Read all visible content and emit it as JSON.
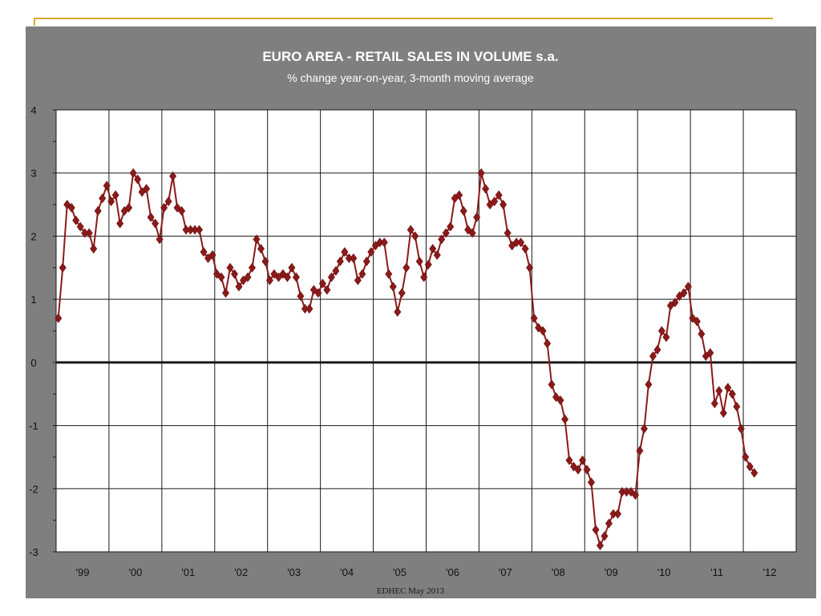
{
  "footer": "EDHEC May 2013",
  "colors": {
    "frame": "#7f7f7f",
    "plot_bg": "#ffffff",
    "series": "#8b1a1a",
    "accent_rule": "#d8a825"
  },
  "chart_data": {
    "type": "line",
    "title": "EURO AREA - RETAIL SALES IN VOLUME s.a.",
    "subtitle": "% change year-on-year, 3-month moving average",
    "xlabel": "",
    "ylabel": "",
    "x_range": [
      "1999-01",
      "2012-12"
    ],
    "ylim": [
      -3,
      4
    ],
    "y_ticks": [
      -3,
      -2,
      -1,
      0,
      1,
      2,
      3,
      4
    ],
    "x_tick_labels": [
      "'99",
      "'00",
      "'01",
      "'02",
      "'03",
      "'04",
      "'05",
      "'06",
      "'07",
      "'08",
      "'09",
      "'10",
      "'11",
      "'12"
    ],
    "grid": true,
    "legend": "none",
    "series": [
      {
        "marker": "diamond",
        "x": [
          "1999-01",
          "1999-02",
          "1999-03",
          "1999-04",
          "1999-05",
          "1999-06",
          "1999-07",
          "1999-08",
          "1999-09",
          "1999-10",
          "1999-11",
          "1999-12",
          "2000-01",
          "2000-02",
          "2000-03",
          "2000-04",
          "2000-05",
          "2000-06",
          "2000-07",
          "2000-08",
          "2000-09",
          "2000-10",
          "2000-11",
          "2000-12",
          "2001-01",
          "2001-02",
          "2001-03",
          "2001-04",
          "2001-05",
          "2001-06",
          "2001-07",
          "2001-08",
          "2001-09",
          "2001-10",
          "2001-11",
          "2001-12",
          "2002-01",
          "2002-02",
          "2002-03",
          "2002-04",
          "2002-05",
          "2002-06",
          "2002-07",
          "2002-08",
          "2002-09",
          "2002-10",
          "2002-11",
          "2002-12",
          "2003-01",
          "2003-02",
          "2003-03",
          "2003-04",
          "2003-05",
          "2003-06",
          "2003-07",
          "2003-08",
          "2003-09",
          "2003-10",
          "2003-11",
          "2003-12",
          "2004-01",
          "2004-02",
          "2004-03",
          "2004-04",
          "2004-05",
          "2004-06",
          "2004-07",
          "2004-08",
          "2004-09",
          "2004-10",
          "2004-11",
          "2004-12",
          "2005-01",
          "2005-02",
          "2005-03",
          "2005-04",
          "2005-05",
          "2005-06",
          "2005-07",
          "2005-08",
          "2005-09",
          "2005-10",
          "2005-11",
          "2005-12",
          "2006-01",
          "2006-02",
          "2006-03",
          "2006-04",
          "2006-05",
          "2006-06",
          "2006-07",
          "2006-08",
          "2006-09",
          "2006-10",
          "2006-11",
          "2006-12",
          "2007-01",
          "2007-02",
          "2007-03",
          "2007-04",
          "2007-05",
          "2007-06",
          "2007-07",
          "2007-08",
          "2007-09",
          "2007-10",
          "2007-11",
          "2007-12",
          "2008-01",
          "2008-02",
          "2008-03",
          "2008-04",
          "2008-05",
          "2008-06",
          "2008-07",
          "2008-08",
          "2008-09",
          "2008-10",
          "2008-11",
          "2008-12",
          "2009-01",
          "2009-02",
          "2009-03",
          "2009-04",
          "2009-05",
          "2009-06",
          "2009-07",
          "2009-08",
          "2009-09",
          "2009-10",
          "2009-11",
          "2009-12",
          "2010-01",
          "2010-02",
          "2010-03",
          "2010-04",
          "2010-05",
          "2010-06",
          "2010-07",
          "2010-08",
          "2010-09",
          "2010-10",
          "2010-11",
          "2010-12",
          "2011-01",
          "2011-02",
          "2011-03",
          "2011-04",
          "2011-05",
          "2011-06",
          "2011-07",
          "2011-08",
          "2011-09",
          "2011-10",
          "2011-11",
          "2011-12",
          "2012-01",
          "2012-02",
          "2012-03"
        ],
        "values": [
          0.7,
          1.5,
          2.5,
          2.45,
          2.25,
          2.15,
          2.05,
          2.05,
          1.8,
          2.4,
          2.6,
          2.8,
          2.55,
          2.65,
          2.2,
          2.4,
          2.45,
          3.0,
          2.9,
          2.7,
          2.75,
          2.3,
          2.2,
          1.95,
          2.45,
          2.55,
          2.95,
          2.45,
          2.4,
          2.1,
          2.1,
          2.1,
          2.1,
          1.75,
          1.65,
          1.7,
          1.4,
          1.35,
          1.1,
          1.5,
          1.4,
          1.2,
          1.3,
          1.35,
          1.5,
          1.95,
          1.8,
          1.6,
          1.3,
          1.4,
          1.35,
          1.4,
          1.35,
          1.5,
          1.35,
          1.05,
          0.85,
          0.85,
          1.15,
          1.1,
          1.25,
          1.15,
          1.35,
          1.45,
          1.6,
          1.75,
          1.65,
          1.65,
          1.3,
          1.4,
          1.6,
          1.75,
          1.85,
          1.9,
          1.9,
          1.4,
          1.2,
          0.8,
          1.1,
          1.5,
          2.1,
          2.0,
          1.6,
          1.35,
          1.55,
          1.8,
          1.7,
          1.95,
          2.05,
          2.15,
          2.6,
          2.65,
          2.4,
          2.1,
          2.05,
          2.3,
          3.0,
          2.75,
          2.5,
          2.55,
          2.65,
          2.5,
          2.05,
          1.85,
          1.9,
          1.9,
          1.8,
          1.5,
          0.7,
          0.55,
          0.5,
          0.3,
          -0.35,
          -0.55,
          -0.6,
          -0.9,
          -1.55,
          -1.65,
          -1.7,
          -1.55,
          -1.7,
          -1.9,
          -2.65,
          -2.9,
          -2.75,
          -2.55,
          -2.4,
          -2.4,
          -2.05,
          -2.05,
          -2.05,
          -2.1,
          -1.4,
          -1.05,
          -0.35,
          0.1,
          0.2,
          0.5,
          0.4,
          0.9,
          0.95,
          1.05,
          1.1,
          1.2,
          0.7,
          0.65,
          0.45,
          0.1,
          0.15,
          -0.65,
          -0.45,
          -0.8,
          -0.4,
          -0.5,
          -0.7,
          -1.05,
          -1.5,
          -1.65,
          -1.75
        ]
      }
    ]
  }
}
